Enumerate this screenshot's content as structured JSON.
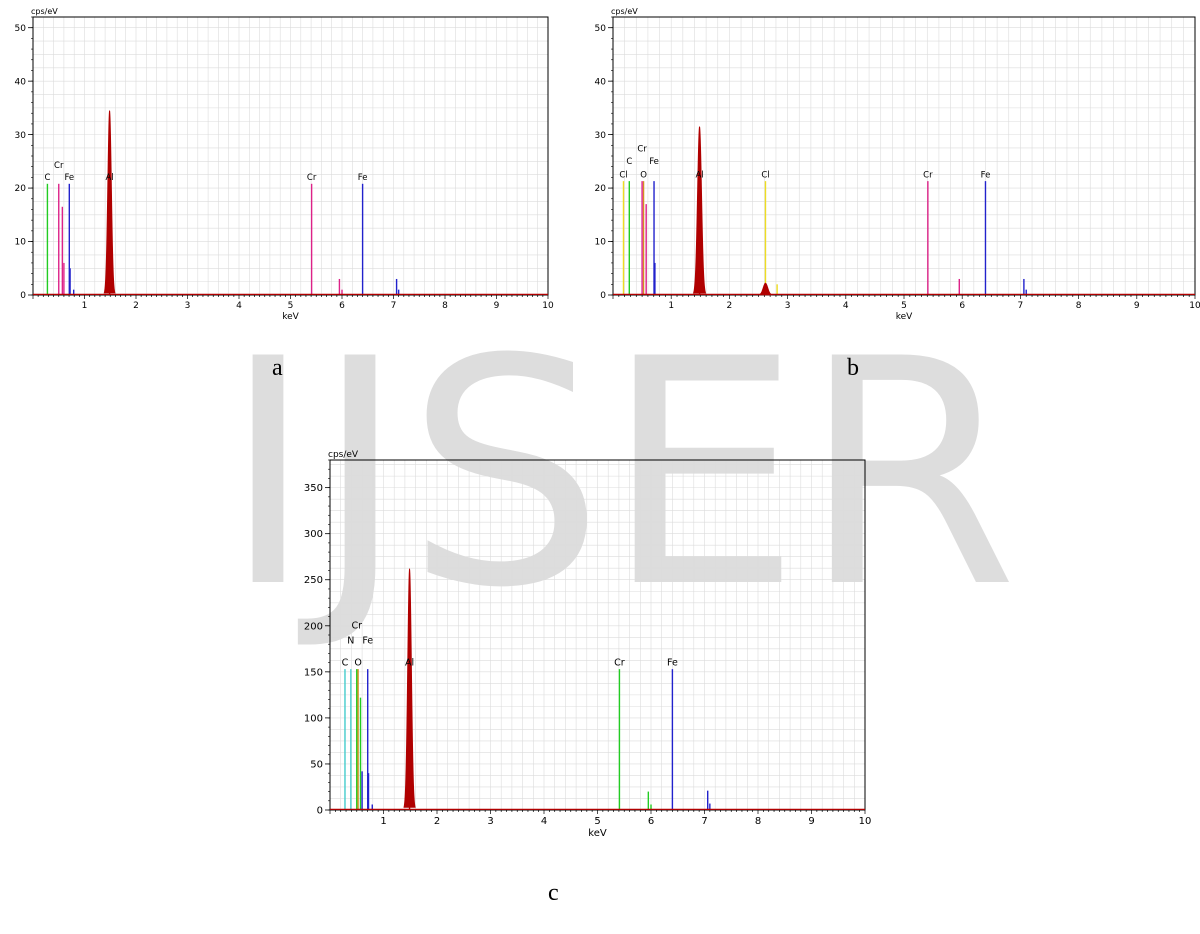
{
  "watermark": {
    "text": "IJSER",
    "color": "#dddddd"
  },
  "colors": {
    "spectrum": "#b00000",
    "C": "#22cc22",
    "N": "#44cccc",
    "O": "#d49020",
    "Cr": "#dd2288",
    "Fe": "#2222cc",
    "Cl": "#eedd22",
    "Al": "#b00000"
  },
  "chart_data": [
    {
      "id": "a",
      "type": "line",
      "caption": "a",
      "ylabel": "cps/eV",
      "xlabel": "keV",
      "xlim": [
        0,
        10
      ],
      "ylim": [
        0,
        52
      ],
      "xticks": [
        1,
        2,
        3,
        4,
        5,
        6,
        7,
        8,
        9,
        10
      ],
      "yticks": [
        0,
        10,
        20,
        30,
        40,
        50
      ],
      "grid": true,
      "peaks": [
        {
          "center": 1.487,
          "height": 34.5,
          "width": 0.035
        }
      ],
      "markers": [
        {
          "element": "C",
          "energy": 0.28,
          "height": 20.8,
          "label": "C",
          "label_y": 21.5,
          "color_key": "C"
        },
        {
          "element": "Cr",
          "energy": 0.5,
          "height": 20.8,
          "label": "Cr",
          "label_y": 23.8,
          "color_key": "Cr"
        },
        {
          "element": "Cr",
          "energy": 0.57,
          "height": 16.5,
          "color_key": "Cr"
        },
        {
          "element": "Cr",
          "energy": 0.6,
          "height": 6,
          "color_key": "Cr"
        },
        {
          "element": "Fe",
          "energy": 0.705,
          "height": 20.8,
          "label": "Fe",
          "label_y": 21.5,
          "color_key": "Fe"
        },
        {
          "element": "Fe",
          "energy": 0.72,
          "height": 5,
          "color_key": "Fe"
        },
        {
          "element": "Fe",
          "energy": 0.79,
          "height": 1,
          "color_key": "Fe"
        },
        {
          "element": "Al",
          "energy": 1.487,
          "height": 20.8,
          "label": "Al",
          "label_y": 21.5,
          "color_key": "Al"
        },
        {
          "element": "Cr",
          "energy": 5.41,
          "height": 20.8,
          "label": "Cr",
          "label_y": 21.5,
          "color_key": "Cr"
        },
        {
          "element": "Cr",
          "energy": 5.95,
          "height": 3,
          "color_key": "Cr"
        },
        {
          "element": "Cr",
          "energy": 6.0,
          "height": 1,
          "color_key": "Cr"
        },
        {
          "element": "Fe",
          "energy": 6.4,
          "height": 20.8,
          "label": "Fe",
          "label_y": 21.5,
          "color_key": "Fe"
        },
        {
          "element": "Fe",
          "energy": 7.06,
          "height": 3,
          "color_key": "Fe"
        },
        {
          "element": "Fe",
          "energy": 7.1,
          "height": 1,
          "color_key": "Fe"
        }
      ]
    },
    {
      "id": "b",
      "type": "line",
      "caption": "b",
      "ylabel": "cps/eV",
      "xlabel": "keV",
      "xlim": [
        0,
        10
      ],
      "ylim": [
        0,
        52
      ],
      "xticks": [
        1,
        2,
        3,
        4,
        5,
        6,
        7,
        8,
        9,
        10
      ],
      "yticks": [
        0,
        10,
        20,
        30,
        40,
        50
      ],
      "grid": true,
      "peaks": [
        {
          "center": 1.487,
          "height": 31.5,
          "width": 0.035
        },
        {
          "center": 2.62,
          "height": 2.2,
          "width": 0.04
        }
      ],
      "markers": [
        {
          "element": "Cl",
          "energy": 0.18,
          "height": 21.3,
          "label": "Cl",
          "label_y": 22.0,
          "color_key": "Cl"
        },
        {
          "element": "C",
          "energy": 0.28,
          "height": 21.3,
          "label": "C",
          "label_y": 24.5,
          "color_key": "C"
        },
        {
          "element": "O",
          "energy": 0.525,
          "height": 21.3,
          "label": "O",
          "label_y": 22.0,
          "color_key": "O"
        },
        {
          "element": "Cr",
          "energy": 0.5,
          "height": 21.3,
          "label": "Cr",
          "label_y": 26.8,
          "color_key": "Cr"
        },
        {
          "element": "Cr",
          "energy": 0.57,
          "height": 17,
          "color_key": "Cr"
        },
        {
          "element": "Fe",
          "energy": 0.705,
          "height": 21.3,
          "label": "Fe",
          "label_y": 24.5,
          "color_key": "Fe"
        },
        {
          "element": "Fe",
          "energy": 0.72,
          "height": 6,
          "color_key": "Fe"
        },
        {
          "element": "Al",
          "energy": 1.487,
          "height": 21.3,
          "label": "Al",
          "label_y": 22.0,
          "color_key": "Al"
        },
        {
          "element": "Cl",
          "energy": 2.62,
          "height": 21.3,
          "label": "Cl",
          "label_y": 22.0,
          "color_key": "Cl"
        },
        {
          "element": "Cl",
          "energy": 2.82,
          "height": 2,
          "color_key": "Cl"
        },
        {
          "element": "Cr",
          "energy": 5.41,
          "height": 21.3,
          "label": "Cr",
          "label_y": 22.0,
          "color_key": "Cr"
        },
        {
          "element": "Cr",
          "energy": 5.95,
          "height": 3,
          "color_key": "Cr"
        },
        {
          "element": "Fe",
          "energy": 6.4,
          "height": 21.3,
          "label": "Fe",
          "label_y": 22.0,
          "color_key": "Fe"
        },
        {
          "element": "Fe",
          "energy": 7.06,
          "height": 3,
          "color_key": "Fe"
        },
        {
          "element": "Fe",
          "energy": 7.1,
          "height": 1,
          "color_key": "Fe"
        }
      ]
    },
    {
      "id": "c",
      "type": "line",
      "caption": "c",
      "ylabel": "cps/eV",
      "xlabel": "keV",
      "xlim": [
        0,
        10
      ],
      "ylim": [
        0,
        380
      ],
      "xticks": [
        1,
        2,
        3,
        4,
        5,
        6,
        7,
        8,
        9,
        10
      ],
      "yticks": [
        0,
        50,
        100,
        150,
        200,
        250,
        300,
        350
      ],
      "grid": true,
      "peaks": [
        {
          "center": 1.487,
          "height": 262,
          "width": 0.035
        }
      ],
      "markers": [
        {
          "element": "C",
          "energy": 0.28,
          "height": 153,
          "label": "C",
          "label_y": 157,
          "color_key": "N"
        },
        {
          "element": "N",
          "energy": 0.39,
          "height": 153,
          "label": "N",
          "label_y": 181,
          "color_key": "N"
        },
        {
          "element": "Cr",
          "energy": 0.5,
          "height": 153,
          "label": "Cr",
          "label_y": 197,
          "color_key": "C"
        },
        {
          "element": "O",
          "energy": 0.525,
          "height": 153,
          "label": "O",
          "label_y": 157,
          "color_key": "O"
        },
        {
          "element": "Cr",
          "energy": 0.57,
          "height": 122,
          "color_key": "C"
        },
        {
          "element": "Fe",
          "energy": 0.705,
          "height": 153,
          "label": "Fe",
          "label_y": 181,
          "color_key": "Fe"
        },
        {
          "element": "Fe",
          "energy": 0.6,
          "height": 42,
          "color_key": "Fe"
        },
        {
          "element": "Fe",
          "energy": 0.72,
          "height": 40,
          "color_key": "Fe"
        },
        {
          "element": "Fe",
          "energy": 0.79,
          "height": 6,
          "color_key": "Fe"
        },
        {
          "element": "Al",
          "energy": 1.487,
          "height": 153,
          "label": "Al",
          "label_y": 157,
          "color_key": "Al"
        },
        {
          "element": "Cr",
          "energy": 5.41,
          "height": 153,
          "label": "Cr",
          "label_y": 157,
          "color_key": "C"
        },
        {
          "element": "Cr",
          "energy": 5.95,
          "height": 20,
          "color_key": "C"
        },
        {
          "element": "Cr",
          "energy": 6.0,
          "height": 6,
          "color_key": "C"
        },
        {
          "element": "Fe",
          "energy": 6.4,
          "height": 153,
          "label": "Fe",
          "label_y": 157,
          "color_key": "Fe"
        },
        {
          "element": "Fe",
          "energy": 7.06,
          "height": 21,
          "color_key": "Fe"
        },
        {
          "element": "Fe",
          "energy": 7.1,
          "height": 7,
          "color_key": "Fe"
        }
      ]
    }
  ]
}
